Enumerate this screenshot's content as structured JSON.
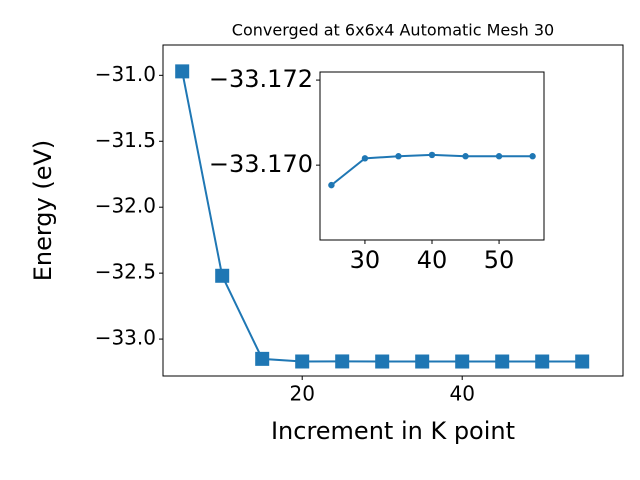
{
  "chart_data": [
    {
      "type": "line",
      "title": "Converged at 6x6x4 Automatic Mesh 30",
      "x_label": "Increment in K point",
      "y_label": "Energy (eV)",
      "x": [
        5,
        10,
        15,
        20,
        25,
        30,
        35,
        40,
        45,
        50,
        55
      ],
      "series": [
        {
          "color": "#1f77b4",
          "marker": "square",
          "values": [
            -30.97,
            -32.52,
            -33.15,
            -33.17,
            -33.1695,
            -33.1702,
            -33.1702,
            -33.1702,
            -33.1702,
            -33.1702,
            -33.1702
          ]
        }
      ],
      "xlim": [
        2.6,
        60.1
      ],
      "ylim": [
        -33.28,
        -30.77
      ],
      "xticks": [
        20,
        40
      ],
      "yticks": [
        {
          "value": -31.0,
          "label": "−31.0"
        },
        {
          "value": -31.5,
          "label": "−31.5"
        },
        {
          "value": -32.0,
          "label": "−32.0"
        },
        {
          "value": -32.5,
          "label": "−32.5"
        },
        {
          "value": -33.0,
          "label": "−33.0"
        }
      ]
    },
    {
      "type": "line",
      "x": [
        25,
        30,
        35,
        40,
        45,
        50,
        55
      ],
      "series": [
        {
          "color": "#1f77b4",
          "marker": "circle",
          "values": [
            -33.16953,
            -33.17016,
            -33.17021,
            -33.17024,
            -33.17021,
            -33.17021,
            -33.17021
          ]
        }
      ],
      "xlim": [
        23.3,
        56.7
      ],
      "ylim": [
        -33.16824,
        -33.17219
      ],
      "xticks": [
        30,
        40,
        50
      ],
      "yticks": [
        {
          "value": -33.172,
          "label": "−33.172"
        },
        {
          "value": -33.17,
          "label": "−33.170"
        }
      ]
    }
  ]
}
